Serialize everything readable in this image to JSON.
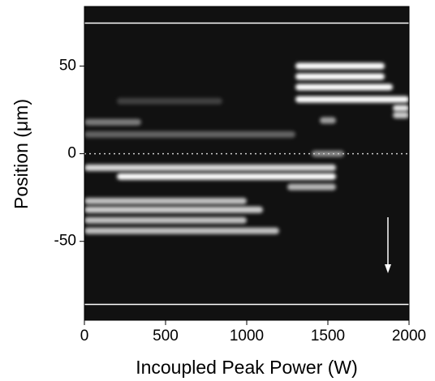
{
  "chart_data": {
    "type": "streak-image",
    "x_label": "Incoupled Peak Power (W)",
    "y_label": "Position (μm)",
    "xlim": [
      0,
      2000
    ],
    "xticks": [
      0,
      500,
      1000,
      1500,
      2000
    ],
    "ylim": [
      -95,
      84
    ],
    "yticks": [
      -50,
      0,
      50
    ],
    "background": "#111111",
    "color": "#ffffff",
    "reference_lines": [
      74.5,
      -86
    ],
    "dotted_line": 0,
    "streaks": [
      {
        "x0": 0,
        "x1": 350,
        "y": 18,
        "intensity": 0.45
      },
      {
        "x0": 0,
        "x1": 1300,
        "y": 11,
        "intensity": 0.35
      },
      {
        "x0": 200,
        "x1": 850,
        "y": 30,
        "intensity": 0.2
      },
      {
        "x0": 0,
        "x1": 1550,
        "y": -8,
        "intensity": 0.85
      },
      {
        "x0": 200,
        "x1": 1550,
        "y": -13,
        "intensity": 1
      },
      {
        "x0": 1250,
        "x1": 1550,
        "y": -19,
        "intensity": 0.7
      },
      {
        "x0": 0,
        "x1": 1000,
        "y": -27,
        "intensity": 0.75
      },
      {
        "x0": 0,
        "x1": 1100,
        "y": -32,
        "intensity": 0.8
      },
      {
        "x0": 0,
        "x1": 1000,
        "y": -38,
        "intensity": 0.75
      },
      {
        "x0": 0,
        "x1": 1200,
        "y": -44,
        "intensity": 0.75
      },
      {
        "x0": 1300,
        "x1": 1850,
        "y": 50,
        "intensity": 1
      },
      {
        "x0": 1300,
        "x1": 1850,
        "y": 44,
        "intensity": 1
      },
      {
        "x0": 1300,
        "x1": 1900,
        "y": 38,
        "intensity": 1
      },
      {
        "x0": 1300,
        "x1": 2000,
        "y": 31,
        "intensity": 1
      },
      {
        "x0": 1900,
        "x1": 2000,
        "y": 26,
        "intensity": 0.9
      },
      {
        "x0": 1900,
        "x1": 2000,
        "y": 22,
        "intensity": 0.8
      },
      {
        "x0": 1450,
        "x1": 1550,
        "y": 19,
        "intensity": 0.6
      },
      {
        "x0": 1400,
        "x1": 1600,
        "y": 0,
        "intensity": 0.5
      }
    ]
  }
}
